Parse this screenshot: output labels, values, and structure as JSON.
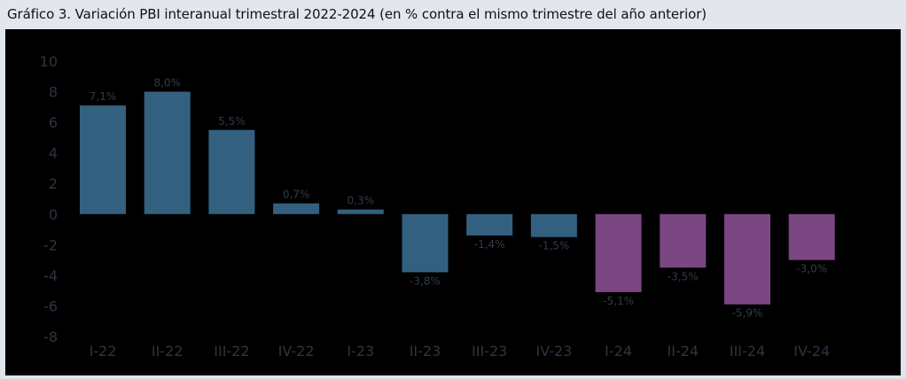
{
  "header": {
    "title": "Gráfico 3. Variación PBI interanual trimestral 2022-2024 (en % contra el mismo trimestre del año anterior)"
  },
  "colors": {
    "positive_period": "#34607f",
    "negative_2024": "#7a4783",
    "axis_text": "#2a3544",
    "label_text": "#2f3a4a"
  },
  "chart_data": {
    "type": "bar",
    "categories": [
      "I-22",
      "II-22",
      "III-22",
      "IV-22",
      "I-23",
      "II-23",
      "III-23",
      "IV-23",
      "I-24",
      "II-24",
      "III-24",
      "IV-24"
    ],
    "values": [
      7.1,
      8.0,
      5.5,
      0.7,
      0.3,
      -3.8,
      -1.4,
      -1.5,
      -5.1,
      -3.5,
      -5.9,
      -3.0
    ],
    "data_labels": [
      "7,1%",
      "8,0%",
      "5,5%",
      "0,7%",
      "0,3%",
      "-3,8%",
      "-1,4%",
      "-1,5%",
      "-5,1%",
      "-3,5%",
      "-5,9%",
      "-3,0%"
    ],
    "bar_colors": [
      "#34607f",
      "#34607f",
      "#34607f",
      "#34607f",
      "#34607f",
      "#34607f",
      "#34607f",
      "#34607f",
      "#7a4783",
      "#7a4783",
      "#7a4783",
      "#7a4783"
    ],
    "yticks": [
      10,
      8,
      6,
      4,
      2,
      0,
      -2,
      -4,
      -6,
      -8
    ],
    "ytick_labels": [
      "10",
      "8",
      "6",
      "4",
      "2",
      "0",
      "-2",
      "-4",
      "-6",
      "-8"
    ],
    "ylim": [
      -8,
      10
    ],
    "grid": false,
    "legend": false
  }
}
